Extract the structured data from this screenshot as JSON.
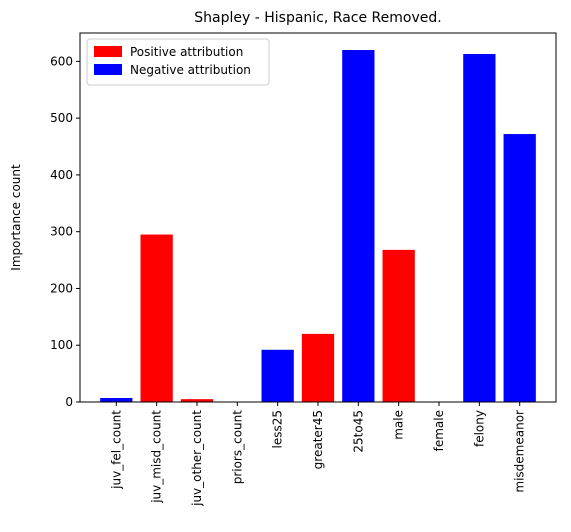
{
  "chart_data": {
    "type": "bar",
    "title": "Shapley - Hispanic, Race Removed.",
    "xlabel": "",
    "ylabel": "Importance count",
    "ylim": [
      0,
      650
    ],
    "yticks": [
      0,
      100,
      200,
      300,
      400,
      500,
      600
    ],
    "categories": [
      "juv_fel_count",
      "juv_misd_count",
      "juv_other_count",
      "priors_count",
      "less25",
      "greater45",
      "25to45",
      "male",
      "female",
      "felony",
      "misdemeanor"
    ],
    "values": [
      7,
      295,
      5,
      0,
      92,
      120,
      620,
      268,
      0,
      613,
      472
    ],
    "attribution": [
      "negative",
      "positive",
      "positive",
      "positive",
      "negative",
      "positive",
      "negative",
      "positive",
      "positive",
      "negative",
      "negative"
    ],
    "colors": {
      "positive": "#ff0000",
      "negative": "#0000ff"
    },
    "legend": {
      "placement": "top-left",
      "entries": [
        {
          "key": "positive",
          "label": "Positive attribution"
        },
        {
          "key": "negative",
          "label": "Negative attribution"
        }
      ]
    },
    "grid": false
  }
}
